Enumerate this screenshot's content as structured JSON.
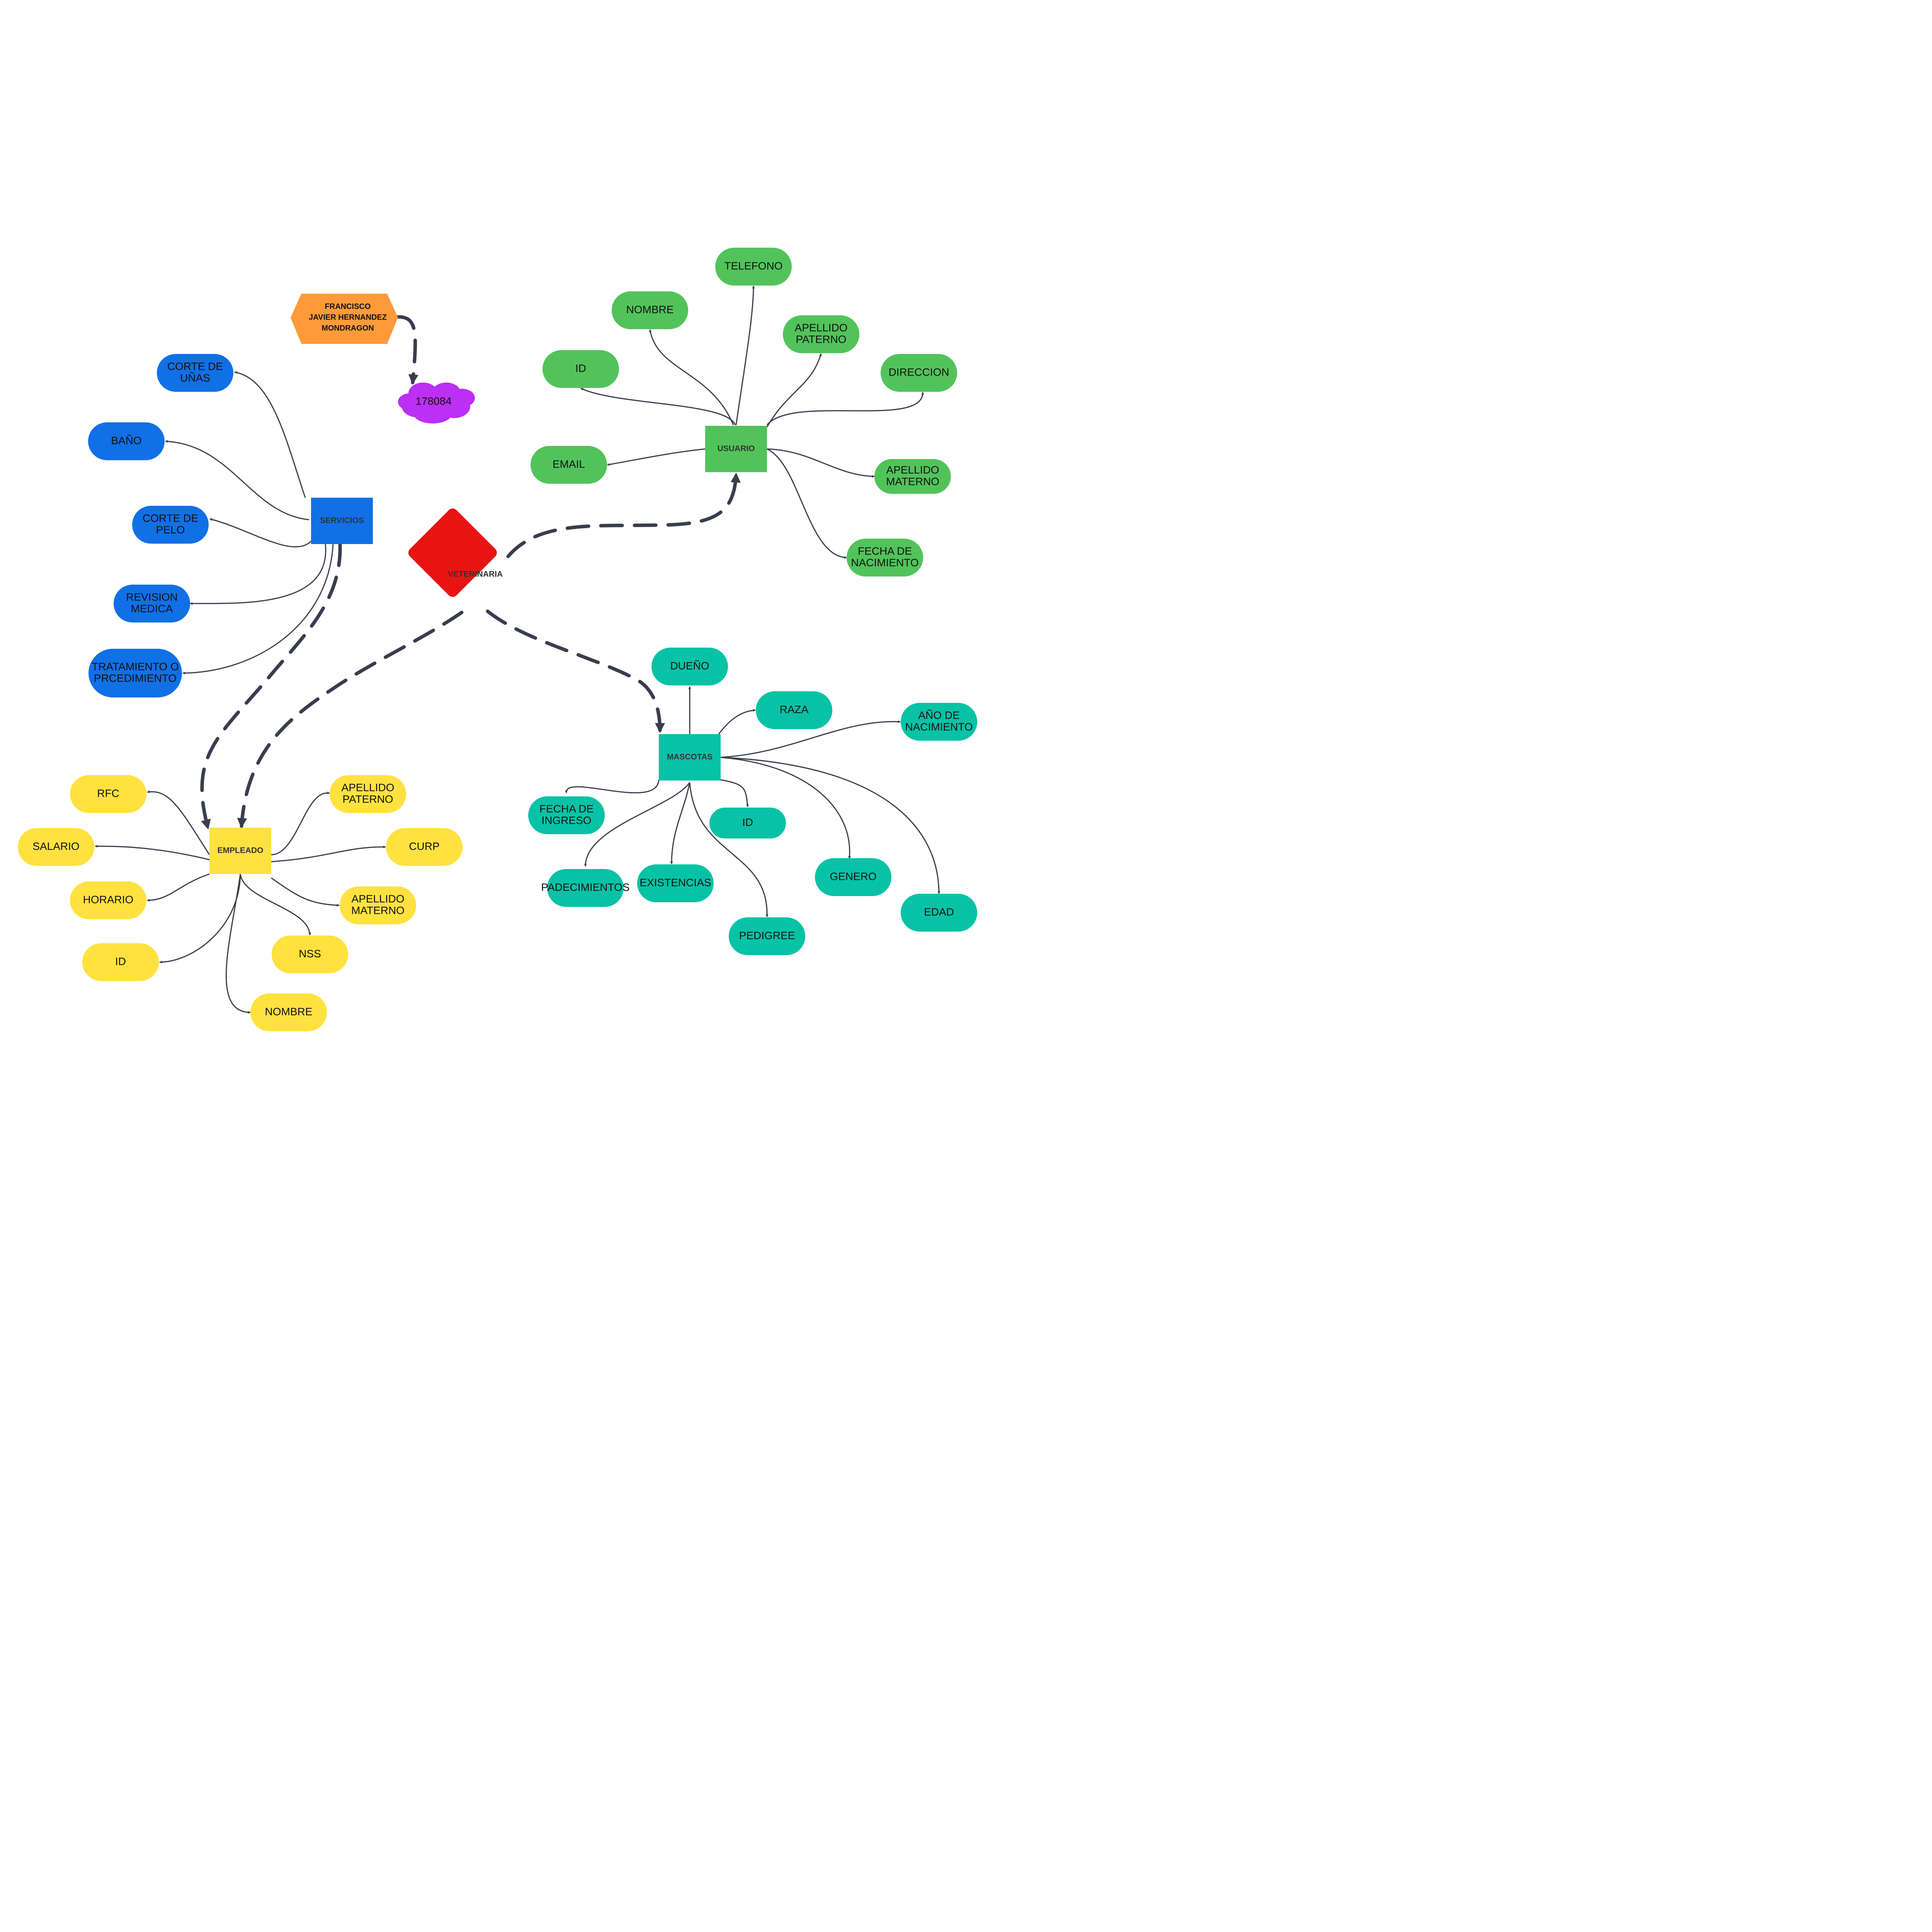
{
  "colors": {
    "servicios": "#1170e6",
    "usuario": "#52c35a",
    "mascotas": "#08c2a6",
    "empleado": "#ffe23f",
    "veterinaria": "#e81414",
    "author": "#ff9a3a",
    "id_cloud": "#bc2ff5",
    "connector": "#3a3d4e"
  },
  "center": {
    "label": "VETERINARIA"
  },
  "author": {
    "lines": [
      "FRANCISCO",
      "JAVIER HERNANDEZ",
      "MONDRAGON"
    ]
  },
  "student_id": {
    "label": "178084"
  },
  "entities": {
    "servicios": {
      "label": "SERVICIOS",
      "attributes": [
        [
          "CORTE DE",
          "UÑAS"
        ],
        [
          "BAÑO"
        ],
        [
          "CORTE DE",
          "PELO"
        ],
        [
          "REVISION",
          "MEDICA"
        ],
        [
          "TRATAMIENTO O",
          "PRCEDIMIENTO"
        ]
      ]
    },
    "usuario": {
      "label": "USUARIO",
      "attributes": [
        [
          "TELEFONO"
        ],
        [
          "NOMBRE"
        ],
        [
          "APELLIDO",
          "PATERNO"
        ],
        [
          "ID"
        ],
        [
          "DIRECCION"
        ],
        [
          "EMAIL"
        ],
        [
          "APELLIDO",
          "MATERNO"
        ],
        [
          "FECHA DE",
          "NACIMIENTO"
        ]
      ]
    },
    "mascotas": {
      "label": "MASCOTAS",
      "attributes": [
        [
          "DUEÑO"
        ],
        [
          "RAZA"
        ],
        [
          "AÑO DE",
          "NACIMIENTO"
        ],
        [
          "FECHA DE",
          "INGRESO"
        ],
        [
          "ID"
        ],
        [
          "PADECIMIENTOS"
        ],
        [
          "EXISTENCIAS"
        ],
        [
          "GENERO"
        ],
        [
          "EDAD"
        ],
        [
          "PEDIGREE"
        ]
      ]
    },
    "empleado": {
      "label": "EMPLEADO",
      "attributes": [
        [
          "RFC"
        ],
        [
          "APELLIDO",
          "PATERNO"
        ],
        [
          "SALARIO"
        ],
        [
          "CURP"
        ],
        [
          "HORARIO"
        ],
        [
          "APELLIDO",
          "MATERNO"
        ],
        [
          "ID"
        ],
        [
          "NSS"
        ],
        [
          "NOMBRE"
        ]
      ]
    }
  }
}
